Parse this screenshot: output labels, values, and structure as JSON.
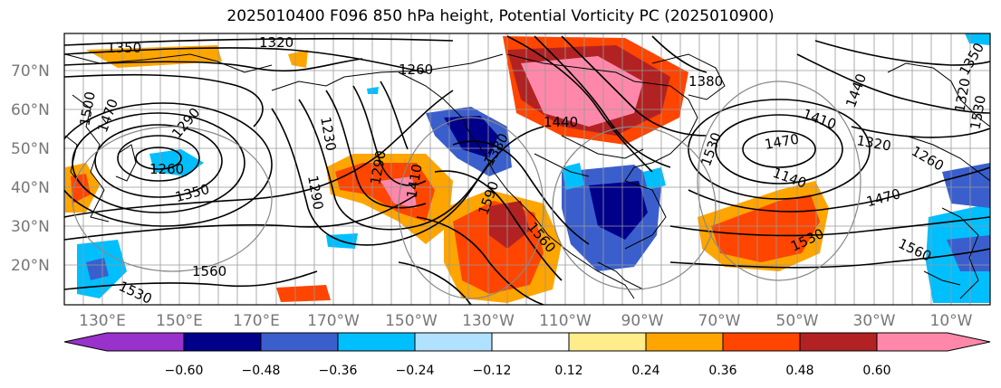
{
  "title": "2025010400 F096 850 hPa height, Potential Vorticity PC (2025010900)",
  "lat_labels": [
    "70°N",
    "60°N",
    "50°N",
    "40°N",
    "30°N",
    "20°N"
  ],
  "lon_labels": [
    "130°E",
    "150°E",
    "170°E",
    "170°W",
    "150°W",
    "130°W",
    "110°W",
    "90°W",
    "70°W",
    "50°W",
    "30°W",
    "10°W"
  ],
  "contour_labels": [
    "1350",
    "1320",
    "1260",
    "1500",
    "1470",
    "1290",
    "1230",
    "1290",
    "1410",
    "1440",
    "1380",
    "1290",
    "1260",
    "1350",
    "1560",
    "1530",
    "1530",
    "1590",
    "1560",
    "1380",
    "1470",
    "1410",
    "1320",
    "1260",
    "1140",
    "1470",
    "1530",
    "1560",
    "1350",
    "1320",
    "1530",
    "1440"
  ],
  "colorbar": {
    "ticks": [
      "−0.60",
      "−0.48",
      "−0.36",
      "−0.24",
      "−0.12",
      "0.12",
      "0.24",
      "0.36",
      "0.48",
      "0.60"
    ],
    "colors": [
      "#9932cc",
      "#00008b",
      "#3a5fcd",
      "#00bfff",
      "#b0e2ff",
      "#ffffff",
      "#ffec8b",
      "#ffa500",
      "#ff4500",
      "#b22222",
      "#ff88aa"
    ]
  }
}
